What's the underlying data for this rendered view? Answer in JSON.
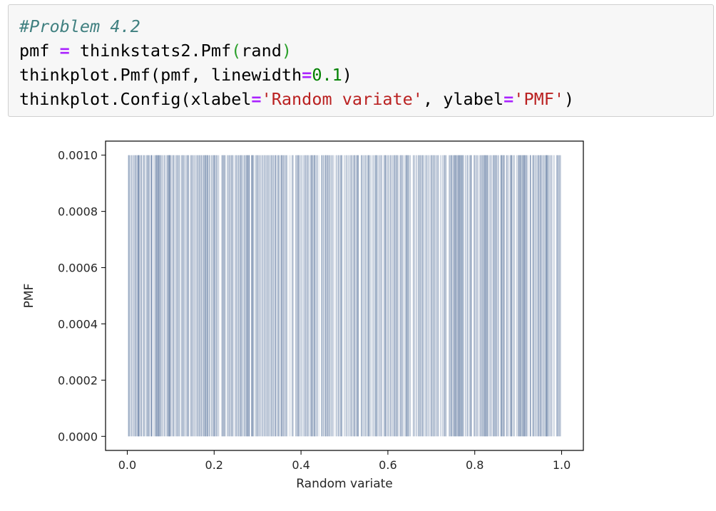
{
  "code_cell": {
    "lines": [
      [
        {
          "t": "#Problem 4.2",
          "c": "comment"
        }
      ],
      [
        {
          "t": "pmf ",
          "c": ""
        },
        {
          "t": "=",
          "c": "op"
        },
        {
          "t": " thinkstats2.Pmf",
          "c": ""
        },
        {
          "t": "(",
          "c": "paren-green"
        },
        {
          "t": "rand",
          "c": ""
        },
        {
          "t": ")",
          "c": "paren-green"
        }
      ],
      [
        {
          "t": "thinkplot.Pmf(pmf, linewidth",
          "c": ""
        },
        {
          "t": "=",
          "c": "op"
        },
        {
          "t": "0.1",
          "c": "number"
        },
        {
          "t": ")",
          "c": ""
        }
      ],
      [
        {
          "t": "thinkplot.Config(xlabel",
          "c": ""
        },
        {
          "t": "=",
          "c": "op"
        },
        {
          "t": "'Random variate'",
          "c": "string"
        },
        {
          "t": ", ylabel",
          "c": ""
        },
        {
          "t": "=",
          "c": "op"
        },
        {
          "t": "'PMF'",
          "c": "string"
        },
        {
          "t": ")",
          "c": ""
        }
      ]
    ]
  },
  "colors": {
    "line": "#4e6d96",
    "axes": "#000000",
    "text": "#262626"
  },
  "chart_data": {
    "type": "bar",
    "title": "",
    "xlabel": "Random variate",
    "ylabel": "PMF",
    "xlim": [
      -0.05,
      1.05
    ],
    "ylim": [
      -5e-05,
      0.00105
    ],
    "x_ticks": [
      "0.0",
      "0.2",
      "0.4",
      "0.6",
      "0.8",
      "1.0"
    ],
    "y_ticks": [
      "0.0000",
      "0.0002",
      "0.0004",
      "0.0006",
      "0.0008",
      "0.0010"
    ],
    "x_tick_values": [
      0.0,
      0.2,
      0.4,
      0.6,
      0.8,
      1.0
    ],
    "y_tick_values": [
      0.0,
      0.0002,
      0.0004,
      0.0006,
      0.0008,
      0.001
    ],
    "sample_count": 1000,
    "x_range": [
      0.0,
      1.0
    ],
    "pmf_value": 0.001,
    "grid": false,
    "legend": "none"
  }
}
